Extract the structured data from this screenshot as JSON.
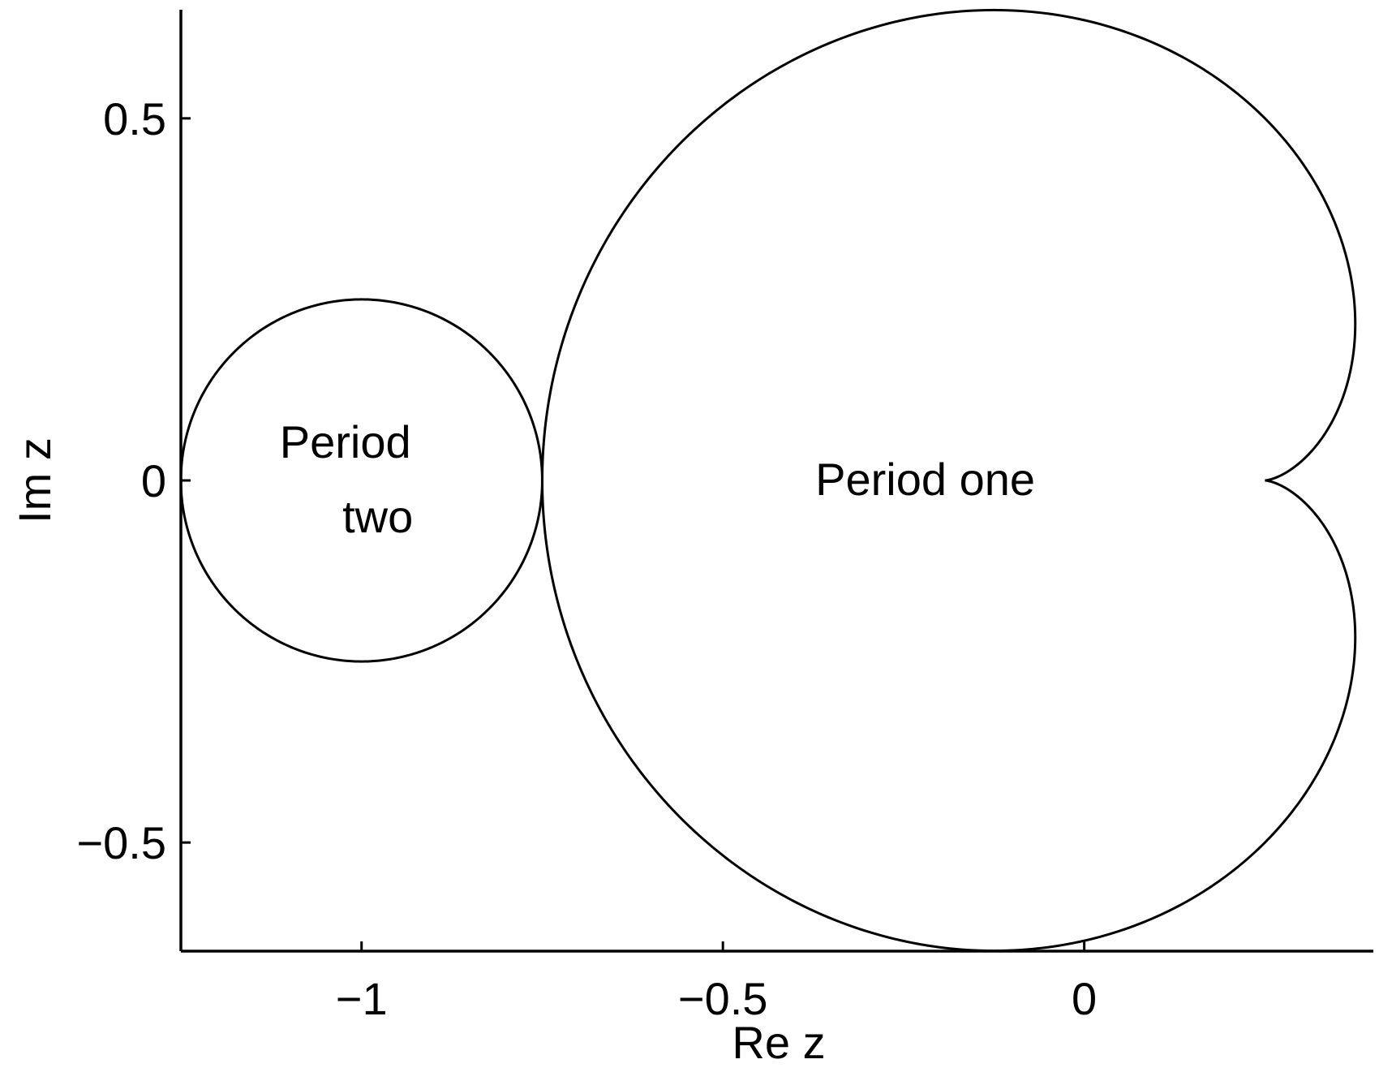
{
  "chart_data": {
    "type": "line",
    "xlabel": "Re z",
    "ylabel": "Im z",
    "xlim": [
      -1.25,
      0.4
    ],
    "ylim": [
      -0.65,
      0.65
    ],
    "x_ticks": [
      {
        "value": -1,
        "label": "−1"
      },
      {
        "value": -0.5,
        "label": "−0.5"
      },
      {
        "value": 0,
        "label": "0"
      }
    ],
    "y_ticks": [
      {
        "value": 0.5,
        "label": "0.5"
      },
      {
        "value": 0,
        "label": "0"
      },
      {
        "value": -0.5,
        "label": "−0.5"
      }
    ],
    "grid": false,
    "series": [
      {
        "kind": "circle",
        "center": [
          -1,
          0
        ],
        "radius": 0.25,
        "color": "#000000"
      },
      {
        "kind": "cardioid",
        "formula": "z = w/2 - w^2/4, w = e^{i theta}",
        "cusp": [
          0.25,
          0
        ],
        "left_end": [
          -0.75,
          0
        ],
        "color": "#000000"
      }
    ],
    "annotations": [
      {
        "lines": [
          "Period",
          "two"
        ],
        "x": -1.0,
        "y": 0.0
      },
      {
        "lines": [
          "Period one"
        ],
        "x": -0.22,
        "y": 0.0
      }
    ]
  }
}
